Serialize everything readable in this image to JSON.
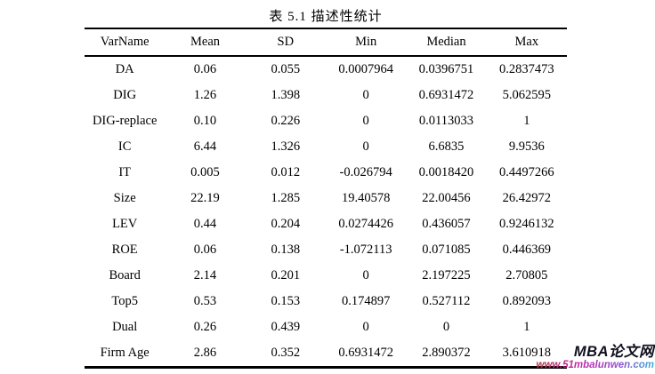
{
  "title": "表 5.1 描述性统计",
  "table": {
    "columns": [
      "VarName",
      "Mean",
      "SD",
      "Min",
      "Median",
      "Max"
    ],
    "rows": [
      [
        "DA",
        "0.06",
        "0.055",
        "0.0007964",
        "0.0396751",
        "0.2837473"
      ],
      [
        "DIG",
        "1.26",
        "1.398",
        "0",
        "0.6931472",
        "5.062595"
      ],
      [
        "DIG-replace",
        "0.10",
        "0.226",
        "0",
        "0.0113033",
        "1"
      ],
      [
        "IC",
        "6.44",
        "1.326",
        "0",
        "6.6835",
        "9.9536"
      ],
      [
        "IT",
        "0.005",
        "0.012",
        "-0.026794",
        "0.0018420",
        "0.4497266"
      ],
      [
        "Size",
        "22.19",
        "1.285",
        "19.40578",
        "22.00456",
        "26.42972"
      ],
      [
        "LEV",
        "0.44",
        "0.204",
        "0.0274426",
        "0.436057",
        "0.9246132"
      ],
      [
        "ROE",
        "0.06",
        "0.138",
        "-1.072113",
        "0.071085",
        "0.446369"
      ],
      [
        "Board",
        "2.14",
        "0.201",
        "0",
        "2.197225",
        "2.70805"
      ],
      [
        "Top5",
        "0.53",
        "0.153",
        "0.174897",
        "0.527112",
        "0.892093"
      ],
      [
        "Dual",
        "0.26",
        "0.439",
        "0",
        "0",
        "1"
      ],
      [
        "Firm Age",
        "2.86",
        "0.352",
        "0.6931472",
        "2.890372",
        "3.610918"
      ]
    ]
  },
  "watermark": {
    "site_name": "MBA论文网",
    "site_url": "www.51mbalunwen.com"
  },
  "colors": {
    "text": "#000000",
    "table_rule": "#000000",
    "watermark_name": "#10101e",
    "watermark_url_gradient": [
      "#a82a3a",
      "#c926a8",
      "#8e4fd0",
      "#3fb0d8"
    ]
  }
}
